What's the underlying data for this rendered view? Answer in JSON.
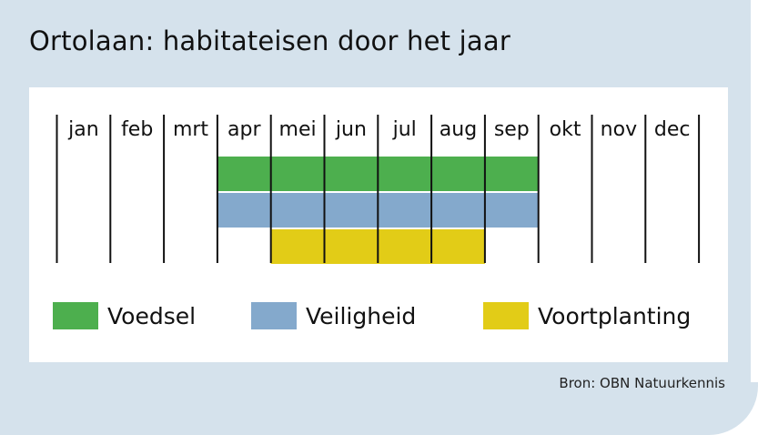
{
  "title": "Ortolaan: habitateisen door het jaar",
  "source": "Bron: OBN Natuurkennis",
  "chart_data": {
    "type": "table",
    "months": [
      "jan",
      "feb",
      "mrt",
      "apr",
      "mei",
      "jun",
      "jul",
      "aug",
      "sep",
      "okt",
      "nov",
      "dec"
    ],
    "series": [
      {
        "name": "Voedsel",
        "color": "#4daf4e",
        "start": "apr",
        "end": "sep"
      },
      {
        "name": "Veiligheid",
        "color": "#84a9cc",
        "start": "apr",
        "end": "sep"
      },
      {
        "name": "Voortplanting",
        "color": "#e2cc17",
        "start": "mei",
        "end": "aug"
      }
    ],
    "legend_position": "bottom"
  }
}
